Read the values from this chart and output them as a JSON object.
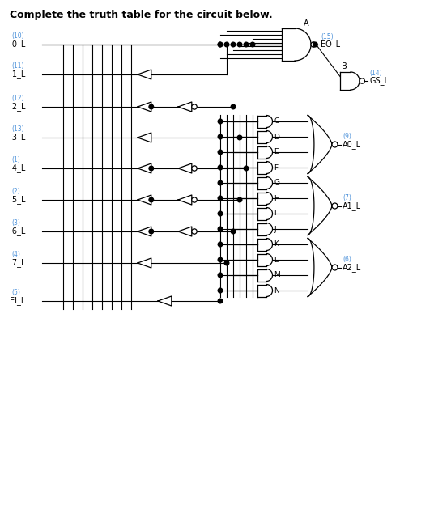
{
  "title": "Complete the truth table for the circuit below.",
  "bg_color": "#ffffff",
  "label_color": "#4a90d9",
  "inputs": [
    {
      "name": "I0_L",
      "pin": "10"
    },
    {
      "name": "I1_L",
      "pin": "11"
    },
    {
      "name": "I2_L",
      "pin": "12"
    },
    {
      "name": "I3_L",
      "pin": "13"
    },
    {
      "name": "I4_L",
      "pin": "1"
    },
    {
      "name": "I5_L",
      "pin": "2"
    },
    {
      "name": "I6_L",
      "pin": "3"
    },
    {
      "name": "I7_L",
      "pin": "4"
    },
    {
      "name": "EI_L",
      "pin": "5"
    }
  ],
  "outputs": [
    {
      "name": "EO_L",
      "pin": "15"
    },
    {
      "name": "GS_L",
      "pin": "14"
    },
    {
      "name": "A0_L",
      "pin": "9"
    },
    {
      "name": "A1_L",
      "pin": "7"
    },
    {
      "name": "A2_L",
      "pin": "6"
    }
  ]
}
